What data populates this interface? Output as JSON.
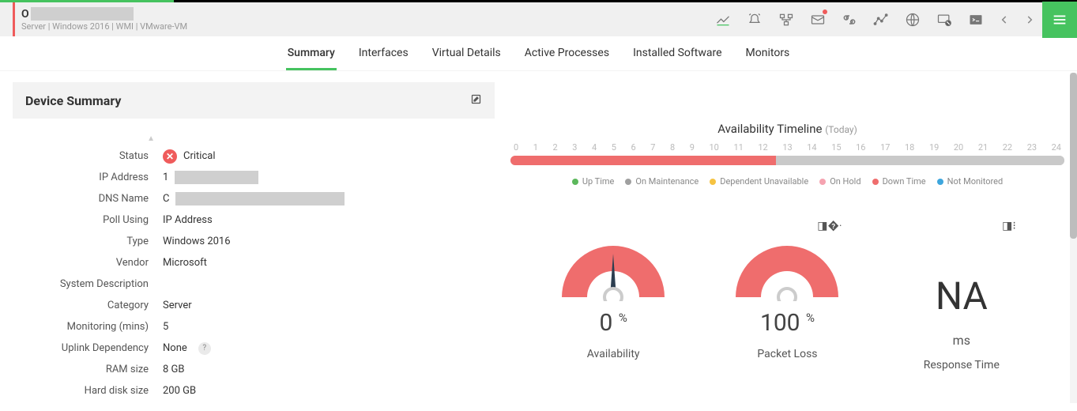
{
  "header": {
    "device_name": "O",
    "meta": "Server  |  Windows 2016   |  WMI   |  VMware-VM"
  },
  "tabs": [
    {
      "label": "Summary",
      "active": true
    },
    {
      "label": "Interfaces",
      "active": false
    },
    {
      "label": "Virtual Details",
      "active": false
    },
    {
      "label": "Active Processes",
      "active": false
    },
    {
      "label": "Installed Software",
      "active": false
    },
    {
      "label": "Monitors",
      "active": false
    }
  ],
  "panel": {
    "title": "Device Summary"
  },
  "summary": {
    "status_label": "Status",
    "status_value": "Critical",
    "ip_label": "IP Address",
    "ip_prefix": "1",
    "dns_label": "DNS Name",
    "dns_prefix": "C",
    "poll_label": "Poll Using",
    "poll_value": "IP Address",
    "type_label": "Type",
    "type_value": "Windows 2016",
    "vendor_label": "Vendor",
    "vendor_value": "Microsoft",
    "sysdesc_label": "System Description",
    "sysdesc_value": "",
    "category_label": "Category",
    "category_value": "Server",
    "monitoring_label": "Monitoring (mins)",
    "monitoring_value": "5",
    "uplink_label": "Uplink Dependency",
    "uplink_value": "None",
    "ram_label": "RAM size",
    "ram_value": "8 GB",
    "disk_label": "Hard disk size",
    "disk_value": "200 GB"
  },
  "timeline": {
    "title": "Availability Timeline",
    "subtitle": "(Today)",
    "hours": [
      "0",
      "1",
      "2",
      "3",
      "4",
      "5",
      "6",
      "7",
      "8",
      "9",
      "10",
      "11",
      "12",
      "13",
      "14",
      "15",
      "16",
      "17",
      "18",
      "19",
      "20",
      "21",
      "22",
      "23",
      "24"
    ],
    "segments": [
      {
        "width_pct": 48,
        "color": "#ef6d6d"
      },
      {
        "width_pct": 52,
        "color": "#c9c9c9"
      }
    ],
    "legend": [
      {
        "color": "#5cb85c",
        "label": "Up Time"
      },
      {
        "color": "#a0a0a0",
        "label": "On Maintenance"
      },
      {
        "color": "#f6c342",
        "label": "Dependent Unavailable"
      },
      {
        "color": "#f5a3b0",
        "label": "On Hold"
      },
      {
        "color": "#ef6d6d",
        "label": "Down Time"
      },
      {
        "color": "#3ea6dd",
        "label": "Not Monitored"
      }
    ]
  },
  "gauges": {
    "availability": {
      "value": "0",
      "unit": "%",
      "label": "Availability",
      "needle_angle": -90,
      "color": "#ef6d6d"
    },
    "packetloss": {
      "value": "100",
      "unit": "%",
      "label": "Packet Loss",
      "needle_angle": 90,
      "color": "#ef6d6d"
    },
    "response": {
      "value": "NA",
      "unit": "ms",
      "label": "Response Time"
    }
  },
  "scroll": {
    "thumb_top": 0,
    "thumb_height": 210
  }
}
